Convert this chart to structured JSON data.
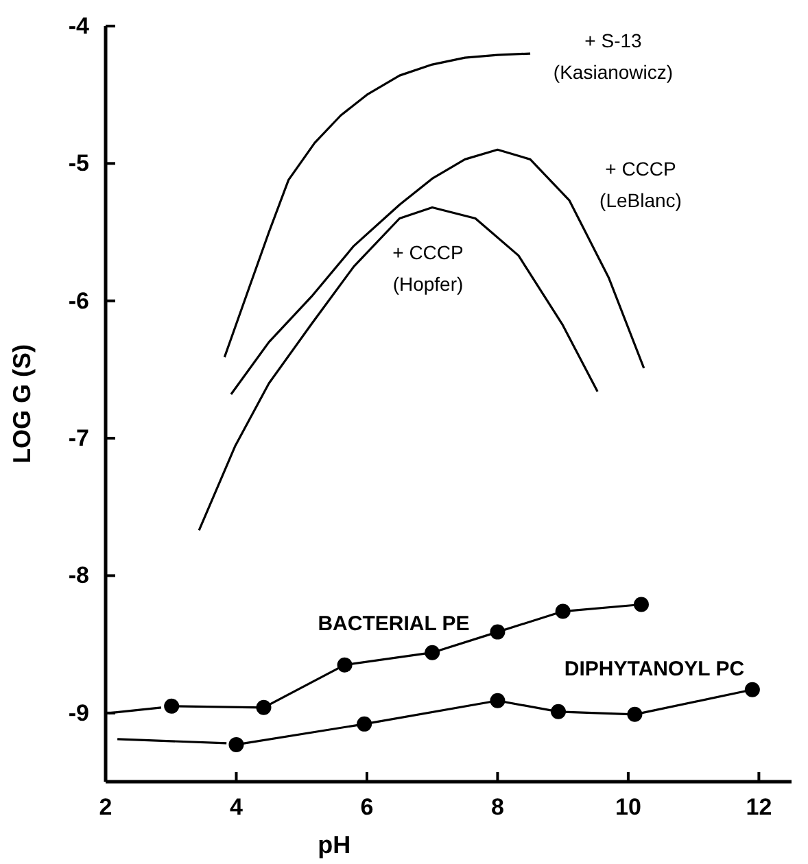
{
  "chart_data": {
    "type": "line",
    "xlabel": "pH",
    "ylabel": "LOG G (S)",
    "xlim": [
      2,
      12.5
    ],
    "ylim": [
      -9.5,
      -4
    ],
    "xticks": [
      2,
      4,
      6,
      8,
      10,
      12
    ],
    "yticks": [
      -9,
      -8,
      -7,
      -6,
      -5,
      -4
    ],
    "grid": false,
    "line_style": "solid",
    "series": [
      {
        "name": "+ S-13\n(Kasianowicz)",
        "color": "#000000",
        "marker": "none",
        "x": [
          3.82,
          4.2,
          4.5,
          4.8,
          5.2,
          5.6,
          6.0,
          6.5,
          7.0,
          7.5,
          8.0,
          8.5
        ],
        "values": [
          -6.41,
          -5.9,
          -5.5,
          -5.12,
          -4.85,
          -4.65,
          -4.5,
          -4.36,
          -4.28,
          -4.23,
          -4.21,
          -4.2
        ]
      },
      {
        "name": "+ CCCP\n(LeBlanc)",
        "color": "#000000",
        "marker": "none",
        "x": [
          3.92,
          4.5,
          5.15,
          5.8,
          6.5,
          7.0,
          7.5,
          8.0,
          8.5,
          9.1,
          9.7,
          10.24
        ],
        "values": [
          -6.68,
          -6.3,
          -5.97,
          -5.6,
          -5.3,
          -5.11,
          -4.97,
          -4.9,
          -4.97,
          -5.27,
          -5.83,
          -6.49
        ]
      },
      {
        "name": "+ CCCP\n(Hopfer)",
        "color": "#000000",
        "marker": "none",
        "x": [
          3.43,
          3.98,
          4.5,
          5.15,
          5.8,
          6.5,
          7.0,
          7.66,
          8.32,
          8.99,
          9.53
        ],
        "values": [
          -7.67,
          -7.06,
          -6.6,
          -6.17,
          -5.75,
          -5.4,
          -5.32,
          -5.4,
          -5.67,
          -6.17,
          -6.66
        ]
      },
      {
        "color": "#000000",
        "marker": "none",
        "x": [
          2.05,
          2.85
        ],
        "values": [
          -9.0,
          -8.96
        ]
      },
      {
        "name": "BACTERIAL PE",
        "color": "#000000",
        "marker": "circle",
        "x": [
          3.01,
          4.42,
          5.66,
          7.0,
          8.0,
          9.0,
          10.2
        ],
        "values": [
          -8.95,
          -8.96,
          -8.65,
          -8.56,
          -8.41,
          -8.26,
          -8.21
        ]
      },
      {
        "color": "#000000",
        "marker": "none",
        "x": [
          2.18,
          3.85
        ],
        "values": [
          -9.19,
          -9.22
        ]
      },
      {
        "name": "DIPHYTANOYL PC",
        "color": "#000000",
        "marker": "circle",
        "x": [
          4.0,
          5.96,
          8.0,
          8.93,
          10.1,
          11.9
        ],
        "values": [
          -9.23,
          -9.08,
          -8.91,
          -8.99,
          -9.01,
          -8.83
        ]
      }
    ]
  }
}
